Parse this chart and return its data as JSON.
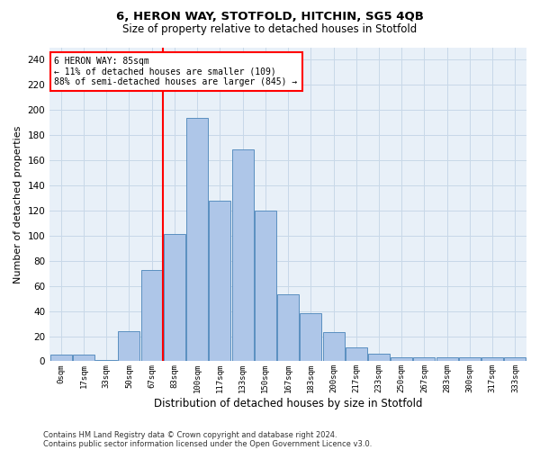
{
  "title1": "6, HERON WAY, STOTFOLD, HITCHIN, SG5 4QB",
  "title2": "Size of property relative to detached houses in Stotfold",
  "xlabel": "Distribution of detached houses by size in Stotfold",
  "ylabel": "Number of detached properties",
  "bar_labels": [
    "0sqm",
    "17sqm",
    "33sqm",
    "50sqm",
    "67sqm",
    "83sqm",
    "100sqm",
    "117sqm",
    "133sqm",
    "150sqm",
    "167sqm",
    "183sqm",
    "200sqm",
    "217sqm",
    "233sqm",
    "250sqm",
    "267sqm",
    "283sqm",
    "300sqm",
    "317sqm",
    "333sqm"
  ],
  "bar_values": [
    5,
    5,
    1,
    24,
    73,
    101,
    194,
    128,
    169,
    120,
    53,
    38,
    23,
    11,
    6,
    3,
    3,
    3,
    3,
    3,
    3
  ],
  "bar_color": "#aec6e8",
  "bar_edge_color": "#5a8fc0",
  "vline_color": "red",
  "annotation_text": "6 HERON WAY: 85sqm\n← 11% of detached houses are smaller (109)\n88% of semi-detached houses are larger (845) →",
  "annotation_box_color": "white",
  "annotation_box_edge": "red",
  "ylim": [
    0,
    250
  ],
  "yticks": [
    0,
    20,
    40,
    60,
    80,
    100,
    120,
    140,
    160,
    180,
    200,
    220,
    240
  ],
  "grid_color": "#c8d8e8",
  "bg_color": "#e8f0f8",
  "footer1": "Contains HM Land Registry data © Crown copyright and database right 2024.",
  "footer2": "Contains public sector information licensed under the Open Government Licence v3.0.",
  "vline_bar_index": 5
}
